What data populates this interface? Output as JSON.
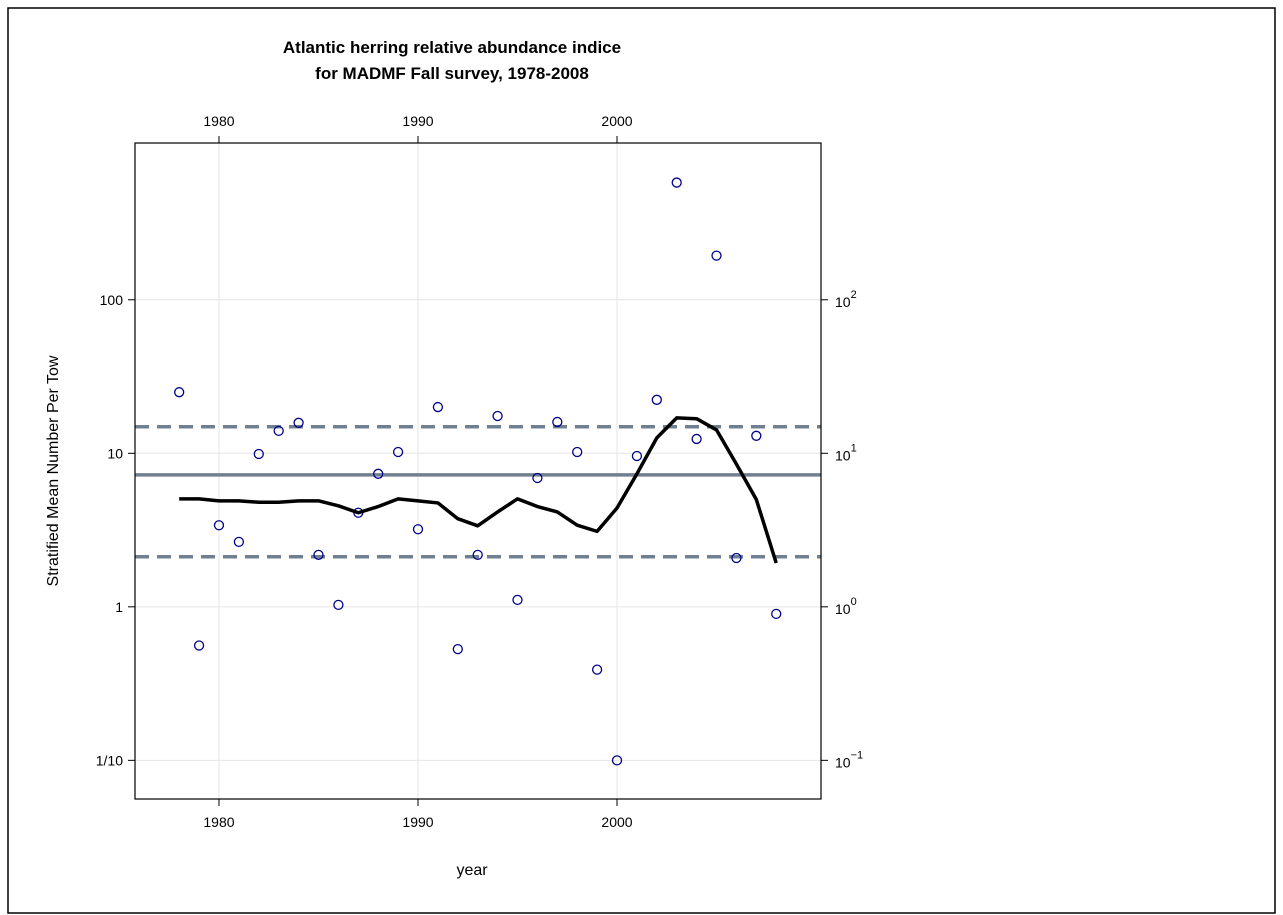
{
  "chart_data": {
    "type": "scatter",
    "title": [
      "Atlantic herring relative abundance indice",
      "for MADMF Fall survey, 1978-2008"
    ],
    "xlabel": "year",
    "ylabel": "Stratified Mean Number Per Tow",
    "yscale": "log",
    "grid": true,
    "x": [
      1978,
      1979,
      1980,
      1981,
      1982,
      1983,
      1984,
      1985,
      1986,
      1987,
      1988,
      1989,
      1990,
      1991,
      1992,
      1993,
      1994,
      1995,
      1996,
      1997,
      1998,
      1999,
      2000,
      2001,
      2002,
      2003,
      2004,
      2005,
      2006,
      2007,
      2008
    ],
    "series": [
      {
        "color": "#00008b",
        "marker": "circle",
        "values": [
          25,
          0.56,
          3.4,
          2.65,
          9.9,
          14,
          15.8,
          2.18,
          1.03,
          4.1,
          7.35,
          10.2,
          3.2,
          20,
          0.53,
          2.18,
          17.5,
          1.11,
          6.9,
          16,
          10.2,
          0.39,
          0.1,
          9.6,
          22.3,
          580,
          12.4,
          194,
          2.08,
          13,
          0.9
        ]
      },
      {
        "color": "#000000",
        "style": "smooth",
        "values": [
          5.05,
          5.05,
          4.9,
          4.9,
          4.8,
          4.8,
          4.9,
          4.9,
          4.55,
          4.1,
          4.5,
          5.05,
          4.9,
          4.75,
          3.75,
          3.37,
          4.15,
          5.05,
          4.5,
          4.15,
          3.4,
          3.1,
          4.4,
          7.35,
          12.6,
          17,
          16.8,
          14.2,
          8.5,
          5,
          1.93
        ]
      }
    ],
    "reference_lines": [
      {
        "value": 7.24,
        "style": "solid",
        "color": "#708090"
      },
      {
        "value": 14.9,
        "style": "dashed",
        "color": "#708090"
      },
      {
        "value": 2.12,
        "style": "dashed",
        "color": "#708090"
      }
    ],
    "xlim": [
      1975.78,
      2010.25
    ],
    "xticks": [
      1980,
      1990,
      2000
    ],
    "ylim": [
      0.056,
      1050
    ],
    "yticks": [
      {
        "value": 0.1,
        "label": "1/10"
      },
      1,
      10,
      100
    ],
    "y2ticks": [
      {
        "value": 0.1,
        "label": "10",
        "exponent": "−1"
      },
      {
        "value": 1,
        "label": "10",
        "exponent": "0"
      },
      {
        "value": 10,
        "label": "10",
        "exponent": "1"
      },
      {
        "value": 100,
        "label": "10",
        "exponent": "2"
      }
    ]
  }
}
